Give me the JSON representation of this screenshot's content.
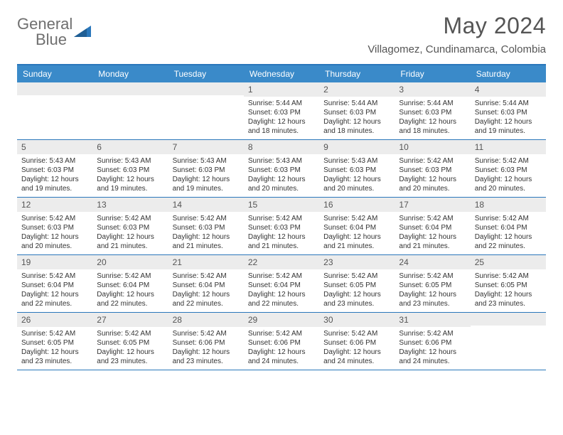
{
  "brand": {
    "word1": "General",
    "word2": "Blue",
    "text_gray": "#6f6f6f",
    "text_blue": "#2a77bb",
    "triangle_fill": "#2a77bb"
  },
  "header": {
    "month_title": "May 2024",
    "location": "Villagomez, Cundinamarca, Colombia",
    "title_color": "#555555"
  },
  "colors": {
    "header_bar": "#3a8ac9",
    "border_blue": "#2a77bb",
    "daynum_bg": "#ececec",
    "body_text": "#333333",
    "background": "#ffffff"
  },
  "fonts": {
    "month_title_pt": 32,
    "location_pt": 15,
    "dow_pt": 12,
    "daynum_pt": 12,
    "body_pt": 10
  },
  "days_of_week": [
    "Sunday",
    "Monday",
    "Tuesday",
    "Wednesday",
    "Thursday",
    "Friday",
    "Saturday"
  ],
  "weeks": [
    [
      {
        "num": "",
        "sunrise": "",
        "sunset": "",
        "daylight": ""
      },
      {
        "num": "",
        "sunrise": "",
        "sunset": "",
        "daylight": ""
      },
      {
        "num": "",
        "sunrise": "",
        "sunset": "",
        "daylight": ""
      },
      {
        "num": "1",
        "sunrise": "Sunrise: 5:44 AM",
        "sunset": "Sunset: 6:03 PM",
        "daylight": "Daylight: 12 hours and 18 minutes."
      },
      {
        "num": "2",
        "sunrise": "Sunrise: 5:44 AM",
        "sunset": "Sunset: 6:03 PM",
        "daylight": "Daylight: 12 hours and 18 minutes."
      },
      {
        "num": "3",
        "sunrise": "Sunrise: 5:44 AM",
        "sunset": "Sunset: 6:03 PM",
        "daylight": "Daylight: 12 hours and 18 minutes."
      },
      {
        "num": "4",
        "sunrise": "Sunrise: 5:44 AM",
        "sunset": "Sunset: 6:03 PM",
        "daylight": "Daylight: 12 hours and 19 minutes."
      }
    ],
    [
      {
        "num": "5",
        "sunrise": "Sunrise: 5:43 AM",
        "sunset": "Sunset: 6:03 PM",
        "daylight": "Daylight: 12 hours and 19 minutes."
      },
      {
        "num": "6",
        "sunrise": "Sunrise: 5:43 AM",
        "sunset": "Sunset: 6:03 PM",
        "daylight": "Daylight: 12 hours and 19 minutes."
      },
      {
        "num": "7",
        "sunrise": "Sunrise: 5:43 AM",
        "sunset": "Sunset: 6:03 PM",
        "daylight": "Daylight: 12 hours and 19 minutes."
      },
      {
        "num": "8",
        "sunrise": "Sunrise: 5:43 AM",
        "sunset": "Sunset: 6:03 PM",
        "daylight": "Daylight: 12 hours and 20 minutes."
      },
      {
        "num": "9",
        "sunrise": "Sunrise: 5:43 AM",
        "sunset": "Sunset: 6:03 PM",
        "daylight": "Daylight: 12 hours and 20 minutes."
      },
      {
        "num": "10",
        "sunrise": "Sunrise: 5:42 AM",
        "sunset": "Sunset: 6:03 PM",
        "daylight": "Daylight: 12 hours and 20 minutes."
      },
      {
        "num": "11",
        "sunrise": "Sunrise: 5:42 AM",
        "sunset": "Sunset: 6:03 PM",
        "daylight": "Daylight: 12 hours and 20 minutes."
      }
    ],
    [
      {
        "num": "12",
        "sunrise": "Sunrise: 5:42 AM",
        "sunset": "Sunset: 6:03 PM",
        "daylight": "Daylight: 12 hours and 20 minutes."
      },
      {
        "num": "13",
        "sunrise": "Sunrise: 5:42 AM",
        "sunset": "Sunset: 6:03 PM",
        "daylight": "Daylight: 12 hours and 21 minutes."
      },
      {
        "num": "14",
        "sunrise": "Sunrise: 5:42 AM",
        "sunset": "Sunset: 6:03 PM",
        "daylight": "Daylight: 12 hours and 21 minutes."
      },
      {
        "num": "15",
        "sunrise": "Sunrise: 5:42 AM",
        "sunset": "Sunset: 6:03 PM",
        "daylight": "Daylight: 12 hours and 21 minutes."
      },
      {
        "num": "16",
        "sunrise": "Sunrise: 5:42 AM",
        "sunset": "Sunset: 6:04 PM",
        "daylight": "Daylight: 12 hours and 21 minutes."
      },
      {
        "num": "17",
        "sunrise": "Sunrise: 5:42 AM",
        "sunset": "Sunset: 6:04 PM",
        "daylight": "Daylight: 12 hours and 21 minutes."
      },
      {
        "num": "18",
        "sunrise": "Sunrise: 5:42 AM",
        "sunset": "Sunset: 6:04 PM",
        "daylight": "Daylight: 12 hours and 22 minutes."
      }
    ],
    [
      {
        "num": "19",
        "sunrise": "Sunrise: 5:42 AM",
        "sunset": "Sunset: 6:04 PM",
        "daylight": "Daylight: 12 hours and 22 minutes."
      },
      {
        "num": "20",
        "sunrise": "Sunrise: 5:42 AM",
        "sunset": "Sunset: 6:04 PM",
        "daylight": "Daylight: 12 hours and 22 minutes."
      },
      {
        "num": "21",
        "sunrise": "Sunrise: 5:42 AM",
        "sunset": "Sunset: 6:04 PM",
        "daylight": "Daylight: 12 hours and 22 minutes."
      },
      {
        "num": "22",
        "sunrise": "Sunrise: 5:42 AM",
        "sunset": "Sunset: 6:04 PM",
        "daylight": "Daylight: 12 hours and 22 minutes."
      },
      {
        "num": "23",
        "sunrise": "Sunrise: 5:42 AM",
        "sunset": "Sunset: 6:05 PM",
        "daylight": "Daylight: 12 hours and 23 minutes."
      },
      {
        "num": "24",
        "sunrise": "Sunrise: 5:42 AM",
        "sunset": "Sunset: 6:05 PM",
        "daylight": "Daylight: 12 hours and 23 minutes."
      },
      {
        "num": "25",
        "sunrise": "Sunrise: 5:42 AM",
        "sunset": "Sunset: 6:05 PM",
        "daylight": "Daylight: 12 hours and 23 minutes."
      }
    ],
    [
      {
        "num": "26",
        "sunrise": "Sunrise: 5:42 AM",
        "sunset": "Sunset: 6:05 PM",
        "daylight": "Daylight: 12 hours and 23 minutes."
      },
      {
        "num": "27",
        "sunrise": "Sunrise: 5:42 AM",
        "sunset": "Sunset: 6:05 PM",
        "daylight": "Daylight: 12 hours and 23 minutes."
      },
      {
        "num": "28",
        "sunrise": "Sunrise: 5:42 AM",
        "sunset": "Sunset: 6:06 PM",
        "daylight": "Daylight: 12 hours and 23 minutes."
      },
      {
        "num": "29",
        "sunrise": "Sunrise: 5:42 AM",
        "sunset": "Sunset: 6:06 PM",
        "daylight": "Daylight: 12 hours and 24 minutes."
      },
      {
        "num": "30",
        "sunrise": "Sunrise: 5:42 AM",
        "sunset": "Sunset: 6:06 PM",
        "daylight": "Daylight: 12 hours and 24 minutes."
      },
      {
        "num": "31",
        "sunrise": "Sunrise: 5:42 AM",
        "sunset": "Sunset: 6:06 PM",
        "daylight": "Daylight: 12 hours and 24 minutes."
      },
      {
        "num": "",
        "sunrise": "",
        "sunset": "",
        "daylight": ""
      }
    ]
  ]
}
